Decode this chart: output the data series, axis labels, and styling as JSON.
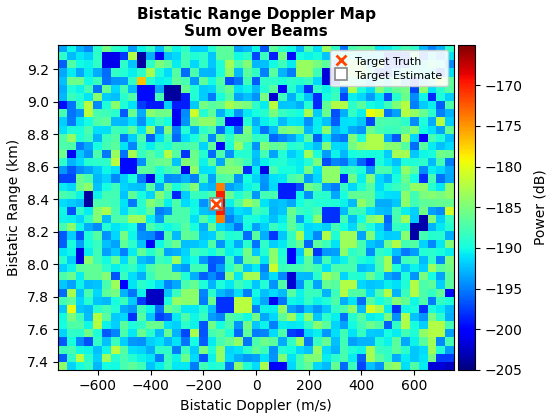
{
  "title": "Bistatic Range Doppler Map\nSum over Beams",
  "xlabel": "Bistatic Doppler (m/s)",
  "ylabel": "Bistatic Range (km)",
  "colorbar_label": "Power (dB)",
  "xlim": [
    -750,
    750
  ],
  "ylim": [
    7.35,
    9.35
  ],
  "clim": [
    -205,
    -165
  ],
  "xticks": [
    -600,
    -400,
    -200,
    0,
    200,
    400,
    600
  ],
  "yticks": [
    7.4,
    7.6,
    7.8,
    8.0,
    8.2,
    8.4,
    8.6,
    8.8,
    9.0,
    9.2
  ],
  "colormap": "jet",
  "target_truth_x": -150,
  "target_truth_y": 8.37,
  "target_estimate_x": -150,
  "target_estimate_y": 8.37,
  "noise_floor": -190,
  "noise_std": 3.5,
  "target_peak": -168,
  "image_x_min": -750,
  "image_x_max": 750,
  "image_y_min": 7.35,
  "image_y_max": 9.35,
  "nx": 45,
  "ny": 40,
  "seed": 7,
  "cbar_ticks": [
    -205,
    -200,
    -195,
    -190,
    -185,
    -180,
    -175,
    -170
  ],
  "figsize": [
    5.6,
    4.2
  ],
  "dpi": 100
}
